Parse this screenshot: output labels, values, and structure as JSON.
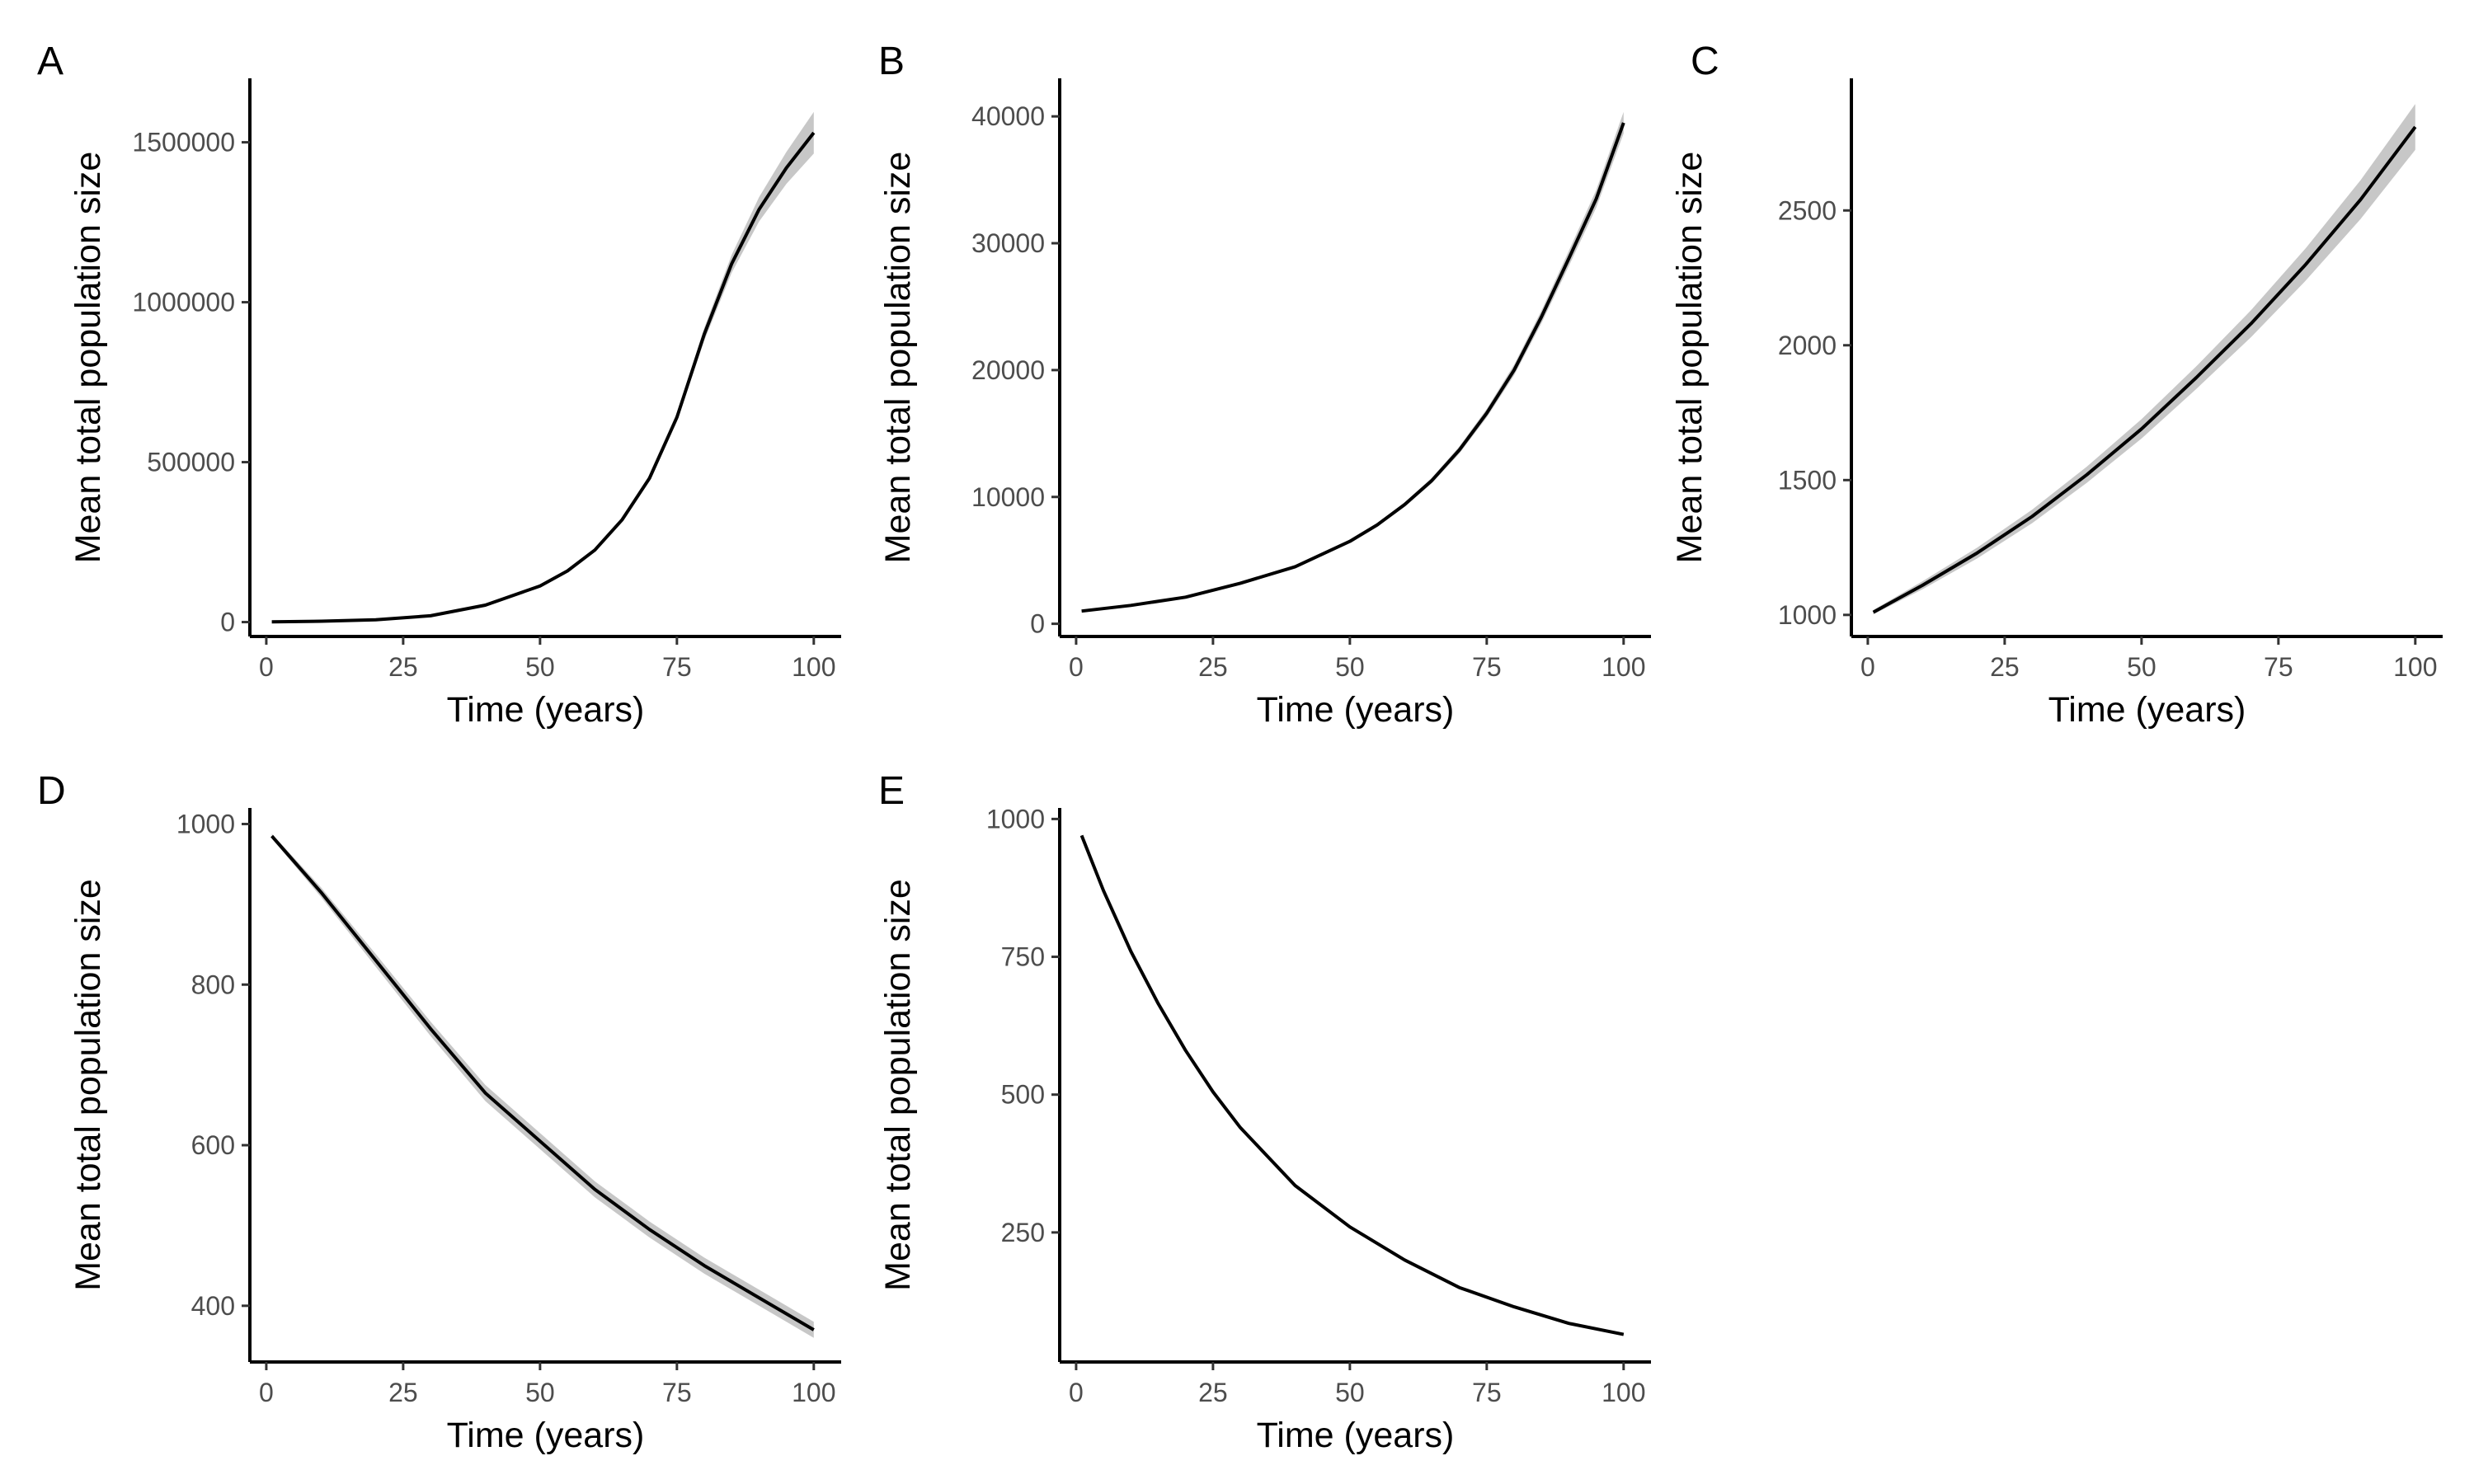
{
  "colors": {
    "line": "#000000",
    "band": "#bdbdbd",
    "tick_text": "#4d4d4d",
    "background": "#ffffff"
  },
  "chart_data": [
    {
      "panel": "A",
      "type": "line",
      "xlabel": "Time (years)",
      "ylabel": "Mean total population size",
      "xlim": [
        -3,
        105
      ],
      "ylim": [
        -45000,
        1700000
      ],
      "xticks": [
        0,
        25,
        50,
        75,
        100
      ],
      "yticks": [
        0,
        500000,
        1000000,
        1500000
      ],
      "ytick_labels": [
        "0",
        "500000",
        "1000000",
        "1500000"
      ],
      "grid": false,
      "series": [
        {
          "x": [
            1,
            10,
            20,
            30,
            40,
            50,
            55,
            60,
            65,
            70,
            75,
            80,
            85,
            90,
            95,
            100
          ],
          "y": [
            1000,
            2700,
            7300,
            19600,
            53000,
            113000,
            160000,
            225000,
            320000,
            450000,
            640000,
            900000,
            1120000,
            1290000,
            1420000,
            1530000
          ],
          "ci_half_width": [
            0,
            0,
            0,
            200,
            500,
            1500,
            2500,
            4000,
            6000,
            9000,
            13000,
            20000,
            28000,
            38000,
            50000,
            65000
          ]
        }
      ]
    },
    {
      "panel": "B",
      "type": "line",
      "xlabel": "Time (years)",
      "ylabel": "Mean total population size",
      "xlim": [
        -3,
        105
      ],
      "ylim": [
        -1000,
        43000
      ],
      "xticks": [
        0,
        25,
        50,
        75,
        100
      ],
      "yticks": [
        0,
        10000,
        20000,
        30000,
        40000
      ],
      "ytick_labels": [
        "0",
        "10000",
        "20000",
        "30000",
        "40000"
      ],
      "grid": false,
      "series": [
        {
          "x": [
            1,
            10,
            20,
            30,
            40,
            50,
            55,
            60,
            65,
            70,
            75,
            80,
            85,
            90,
            95,
            100
          ],
          "y": [
            1000,
            1450,
            2100,
            3200,
            4500,
            6500,
            7800,
            9400,
            11300,
            13700,
            16600,
            20000,
            24200,
            28800,
            33500,
            39500
          ],
          "ci_half_width": [
            20,
            30,
            40,
            60,
            80,
            120,
            150,
            180,
            220,
            280,
            340,
            420,
            500,
            600,
            700,
            850
          ]
        }
      ]
    },
    {
      "panel": "C",
      "type": "line",
      "xlabel": "Time (years)",
      "ylabel": "Mean total population size",
      "xlim": [
        -3,
        105
      ],
      "ylim": [
        920,
        2990
      ],
      "xticks": [
        0,
        25,
        50,
        75,
        100
      ],
      "yticks": [
        1000,
        1500,
        2000,
        2500
      ],
      "ytick_labels": [
        "1000",
        "1500",
        "2000",
        "2500"
      ],
      "grid": false,
      "series": [
        {
          "x": [
            1,
            10,
            20,
            30,
            40,
            50,
            60,
            70,
            80,
            90,
            100
          ],
          "y": [
            1010,
            1110,
            1230,
            1365,
            1520,
            1690,
            1880,
            2080,
            2300,
            2540,
            2810
          ],
          "ci_half_width": [
            8,
            15,
            20,
            25,
            30,
            36,
            42,
            50,
            60,
            72,
            85
          ]
        }
      ]
    },
    {
      "panel": "D",
      "type": "line",
      "xlabel": "Time (years)",
      "ylabel": "Mean total population size",
      "xlim": [
        -3,
        105
      ],
      "ylim": [
        330,
        1020
      ],
      "xticks": [
        0,
        25,
        50,
        75,
        100
      ],
      "yticks": [
        400,
        600,
        800,
        1000
      ],
      "ytick_labels": [
        "400",
        "600",
        "800",
        "1000"
      ],
      "grid": false,
      "series": [
        {
          "x": [
            1,
            10,
            20,
            30,
            40,
            50,
            60,
            70,
            80,
            90,
            100
          ],
          "y": [
            985,
            915,
            830,
            745,
            665,
            605,
            545,
            495,
            450,
            410,
            370
          ],
          "ci_half_width": [
            3,
            6,
            8,
            9,
            10,
            10,
            10,
            10,
            10,
            10,
            10
          ]
        }
      ]
    },
    {
      "panel": "E",
      "type": "line",
      "xlabel": "Time (years)",
      "ylabel": "Mean total population size",
      "xlim": [
        -3,
        105
      ],
      "ylim": [
        15,
        1020
      ],
      "xticks": [
        0,
        25,
        50,
        75,
        100
      ],
      "yticks": [
        250,
        500,
        750,
        1000
      ],
      "ytick_labels": [
        "250",
        "500",
        "750",
        "1000"
      ],
      "grid": false,
      "series": [
        {
          "x": [
            1,
            5,
            10,
            15,
            20,
            25,
            30,
            40,
            50,
            60,
            70,
            80,
            90,
            100
          ],
          "y": [
            970,
            870,
            760,
            665,
            580,
            505,
            440,
            335,
            260,
            200,
            150,
            115,
            85,
            65
          ],
          "ci_half_width": [
            2,
            2,
            3,
            3,
            3,
            3,
            3,
            3,
            2,
            2,
            2,
            2,
            2,
            2
          ]
        }
      ]
    }
  ]
}
